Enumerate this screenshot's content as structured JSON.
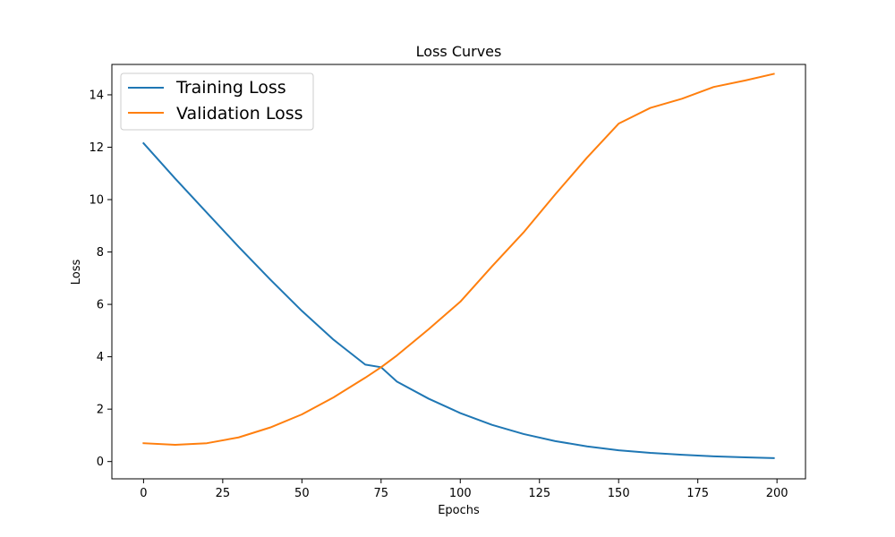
{
  "chart_data": {
    "type": "line",
    "title": "Loss Curves",
    "xlabel": "Epochs",
    "ylabel": "Loss",
    "xlim": [
      -10,
      209
    ],
    "ylim": [
      -0.66,
      15.16
    ],
    "xticks": [
      0,
      25,
      50,
      75,
      100,
      125,
      150,
      175,
      200
    ],
    "yticks": [
      0,
      2,
      4,
      6,
      8,
      10,
      12,
      14
    ],
    "grid": false,
    "legend_position": "top-left",
    "series": [
      {
        "name": "Training Loss",
        "color": "#1f77b4",
        "x": [
          0,
          10,
          20,
          30,
          40,
          50,
          60,
          70,
          75,
          80,
          90,
          100,
          110,
          120,
          130,
          140,
          150,
          160,
          170,
          180,
          190,
          199
        ],
        "y": [
          12.15,
          10.8,
          9.5,
          8.2,
          6.95,
          5.75,
          4.65,
          3.7,
          3.6,
          3.05,
          2.4,
          1.85,
          1.4,
          1.05,
          0.78,
          0.58,
          0.43,
          0.33,
          0.26,
          0.2,
          0.16,
          0.13
        ]
      },
      {
        "name": "Validation Loss",
        "color": "#ff7f0e",
        "x": [
          0,
          10,
          20,
          30,
          40,
          50,
          60,
          70,
          75,
          80,
          90,
          100,
          110,
          120,
          130,
          140,
          150,
          160,
          170,
          180,
          190,
          199
        ],
        "y": [
          0.7,
          0.64,
          0.7,
          0.92,
          1.3,
          1.8,
          2.45,
          3.2,
          3.6,
          4.05,
          5.05,
          6.1,
          7.45,
          8.75,
          10.2,
          11.6,
          12.9,
          13.5,
          13.85,
          14.3,
          14.55,
          14.8
        ]
      }
    ]
  }
}
